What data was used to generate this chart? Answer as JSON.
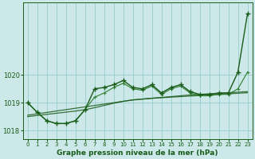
{
  "xlabel": "Graphe pression niveau de la mer (hPa)",
  "background_color": "#cce8e8",
  "grid_color": "#99cccc",
  "line_color_dark": "#1a5c1a",
  "line_color_med": "#2e7d2e",
  "hours": [
    0,
    1,
    2,
    3,
    4,
    5,
    6,
    7,
    8,
    9,
    10,
    11,
    12,
    13,
    14,
    15,
    16,
    17,
    18,
    19,
    20,
    21,
    22,
    23
  ],
  "series_straight1": [
    1018.55,
    1018.6,
    1018.65,
    1018.7,
    1018.75,
    1018.8,
    1018.85,
    1018.9,
    1018.95,
    1019.0,
    1019.05,
    1019.1,
    1019.13,
    1019.16,
    1019.19,
    1019.22,
    1019.25,
    1019.28,
    1019.3,
    1019.32,
    1019.34,
    1019.36,
    1019.38,
    1019.4
  ],
  "series_straight2": [
    1018.5,
    1018.54,
    1018.58,
    1018.62,
    1018.66,
    1018.7,
    1018.75,
    1018.82,
    1018.9,
    1018.98,
    1019.05,
    1019.1,
    1019.13,
    1019.16,
    1019.18,
    1019.2,
    1019.22,
    1019.24,
    1019.26,
    1019.28,
    1019.3,
    1019.32,
    1019.34,
    1019.36
  ],
  "series_main": [
    1019.0,
    1018.65,
    1018.35,
    1018.25,
    1018.25,
    1018.35,
    1018.75,
    1019.5,
    1019.55,
    1019.65,
    1019.8,
    1019.55,
    1019.5,
    1019.65,
    1019.35,
    1019.55,
    1019.65,
    1019.4,
    1019.3,
    1019.3,
    1019.35,
    1019.35,
    1020.1,
    1022.2
  ],
  "series_second": [
    1019.0,
    1018.65,
    1018.35,
    1018.25,
    1018.25,
    1018.35,
    1018.75,
    1019.2,
    1019.35,
    1019.55,
    1019.7,
    1019.5,
    1019.45,
    1019.6,
    1019.3,
    1019.5,
    1019.6,
    1019.35,
    1019.25,
    1019.25,
    1019.3,
    1019.3,
    1019.5,
    1020.1
  ],
  "ylim": [
    1017.7,
    1022.6
  ],
  "yticks": [
    1018,
    1019,
    1020
  ],
  "yticklabels": [
    "1018",
    "1019",
    "1020"
  ]
}
